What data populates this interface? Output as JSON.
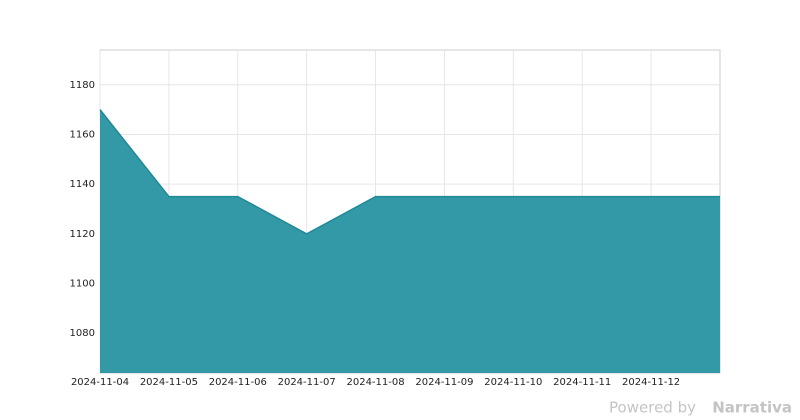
{
  "chart_data": {
    "type": "area",
    "x": [
      "2024-11-04",
      "2024-11-05",
      "2024-11-06",
      "2024-11-07",
      "2024-11-08",
      "2024-11-09",
      "2024-11-10",
      "2024-11-11",
      "2024-11-12",
      "2024-11-13"
    ],
    "values": [
      1170,
      1135,
      1135,
      1120,
      1135,
      1135,
      1135,
      1135,
      1135,
      1135
    ],
    "color": "#3399a6",
    "line_color": "#1e8a96",
    "xlim": [
      "2024-11-04",
      "2024-11-13"
    ],
    "xticks": [
      "2024-11-04",
      "2024-11-05",
      "2024-11-06",
      "2024-11-07",
      "2024-11-08",
      "2024-11-09",
      "2024-11-10",
      "2024-11-11",
      "2024-11-12"
    ],
    "ylim": [
      1064,
      1194
    ],
    "yticks": [
      1080,
      1100,
      1120,
      1140,
      1160,
      1180
    ],
    "grid": true
  },
  "watermark": {
    "prefix": "Powered by",
    "brand": "Narrativa"
  }
}
